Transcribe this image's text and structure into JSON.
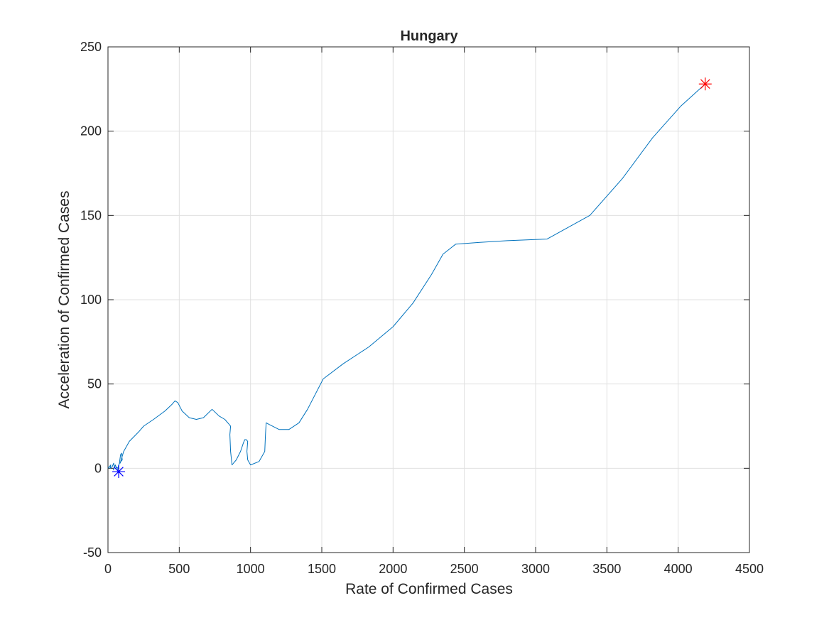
{
  "chart_data": {
    "type": "line",
    "title": "Hungary",
    "xlabel": "Rate of Confirmed Cases",
    "ylabel": "Acceleration of Confirmed Cases",
    "xlim": [
      0,
      4500
    ],
    "ylim": [
      -50,
      250
    ],
    "xticks": [
      0,
      500,
      1000,
      1500,
      2000,
      2500,
      3000,
      3500,
      4000,
      4500
    ],
    "yticks": [
      -50,
      0,
      50,
      100,
      150,
      200,
      250
    ],
    "xtick_labels": [
      "0",
      "500",
      "1000",
      "1500",
      "2000",
      "2500",
      "3000",
      "3500",
      "4000",
      "4500"
    ],
    "ytick_labels": [
      "-50",
      "0",
      "50",
      "100",
      "150",
      "200",
      "250"
    ],
    "grid": true,
    "colors": {
      "line": "#0072BD",
      "start_marker": "#0000FF",
      "end_marker": "#FF0000",
      "grid": "#e0e0e0",
      "axis": "#262626"
    },
    "series": [
      {
        "x": [
          0,
          10,
          20,
          15,
          30,
          40,
          45,
          38,
          52,
          60,
          55,
          70,
          75,
          68,
          80,
          88,
          95,
          100,
          90,
          85,
          110,
          150,
          220,
          250,
          320,
          400,
          450,
          470,
          490,
          520,
          570,
          620,
          670,
          730,
          780,
          820,
          850,
          860,
          855,
          860,
          870,
          880,
          900,
          930,
          950,
          960,
          970,
          980,
          975,
          980,
          1000,
          1060,
          1100,
          1105,
          1110,
          1130,
          1200,
          1270,
          1340,
          1400,
          1510,
          1650,
          1830,
          2000,
          2140,
          2270,
          2350,
          2440,
          2610,
          2800,
          3080,
          3380,
          3610,
          3820,
          4020,
          4190
        ],
        "y": [
          0,
          1,
          2,
          0,
          1,
          3,
          1,
          -1,
          2,
          0,
          1,
          0,
          2,
          -1,
          3,
          8,
          9,
          5,
          4,
          3,
          10,
          16,
          22,
          25,
          29,
          34,
          38,
          40,
          39,
          34,
          30,
          29,
          30,
          35,
          31,
          29,
          26,
          25,
          20,
          10,
          2,
          3,
          5,
          10,
          15,
          17,
          17,
          16,
          10,
          5,
          2,
          4,
          10,
          20,
          27,
          26,
          23,
          23,
          27,
          35,
          53,
          62,
          72,
          84,
          98,
          115,
          127,
          133,
          134,
          135,
          136,
          150,
          172,
          196,
          215,
          228
        ]
      }
    ],
    "markers": [
      {
        "x": 75,
        "y": -2,
        "color": "#0000FF",
        "shape": "asterisk"
      },
      {
        "x": 4190,
        "y": 228,
        "color": "#FF0000",
        "shape": "asterisk"
      }
    ]
  }
}
